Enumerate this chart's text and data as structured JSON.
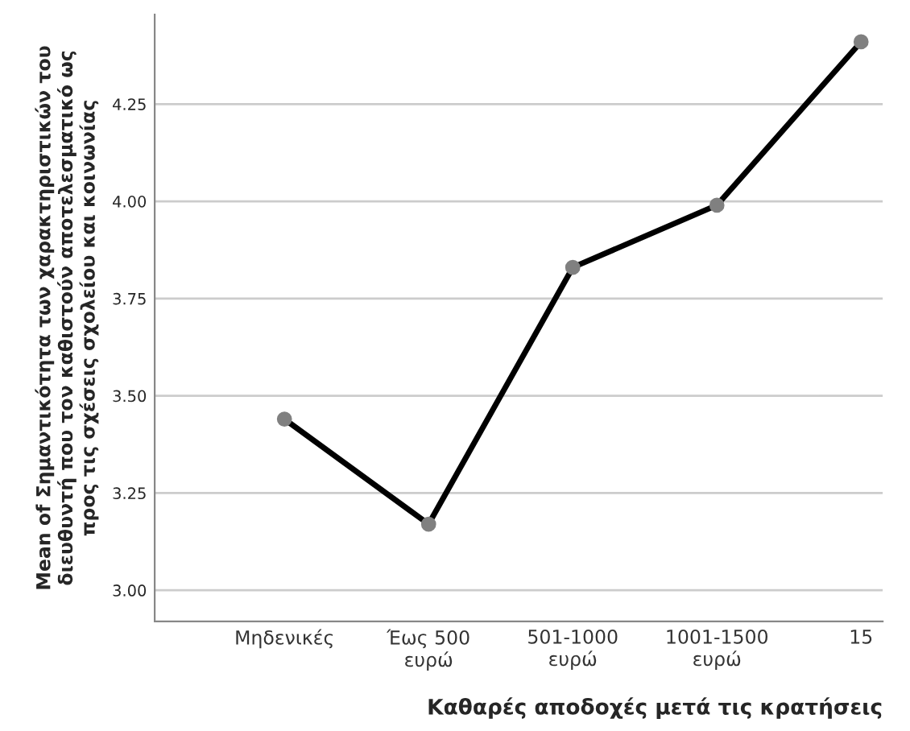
{
  "chart_data": {
    "type": "line",
    "xlabel": "Καθαρές αποδοχές μετά τις κρατήσεις",
    "ylabel": "Mean of Σημαντικότητα των χαρακτηριστικών του\nδιευθυντή που τον καθιστούν αποτελεσματικό ως\nπρος τις σχέσεις σχολείου και κοινωνίας",
    "categories": [
      "Μηδενικές",
      "Έως 500\nευρώ",
      "501-1000\nευρώ",
      "1001-1500\nευρώ",
      "15"
    ],
    "series": [
      {
        "color": "#000000",
        "values": [
          3.44,
          3.17,
          3.83,
          3.99,
          4.41
        ]
      }
    ],
    "ylim": [
      2.92,
      4.48
    ],
    "yticks": [
      {
        "value": 3.0,
        "label": "3.00"
      },
      {
        "value": 3.25,
        "label": "3.25"
      },
      {
        "value": 3.5,
        "label": "3.50"
      },
      {
        "value": 3.75,
        "label": "3.75"
      },
      {
        "value": 4.0,
        "label": "4.00"
      },
      {
        "value": 4.25,
        "label": "4.25"
      }
    ],
    "grid": "y",
    "marker": "circle",
    "line_style": "solid"
  }
}
